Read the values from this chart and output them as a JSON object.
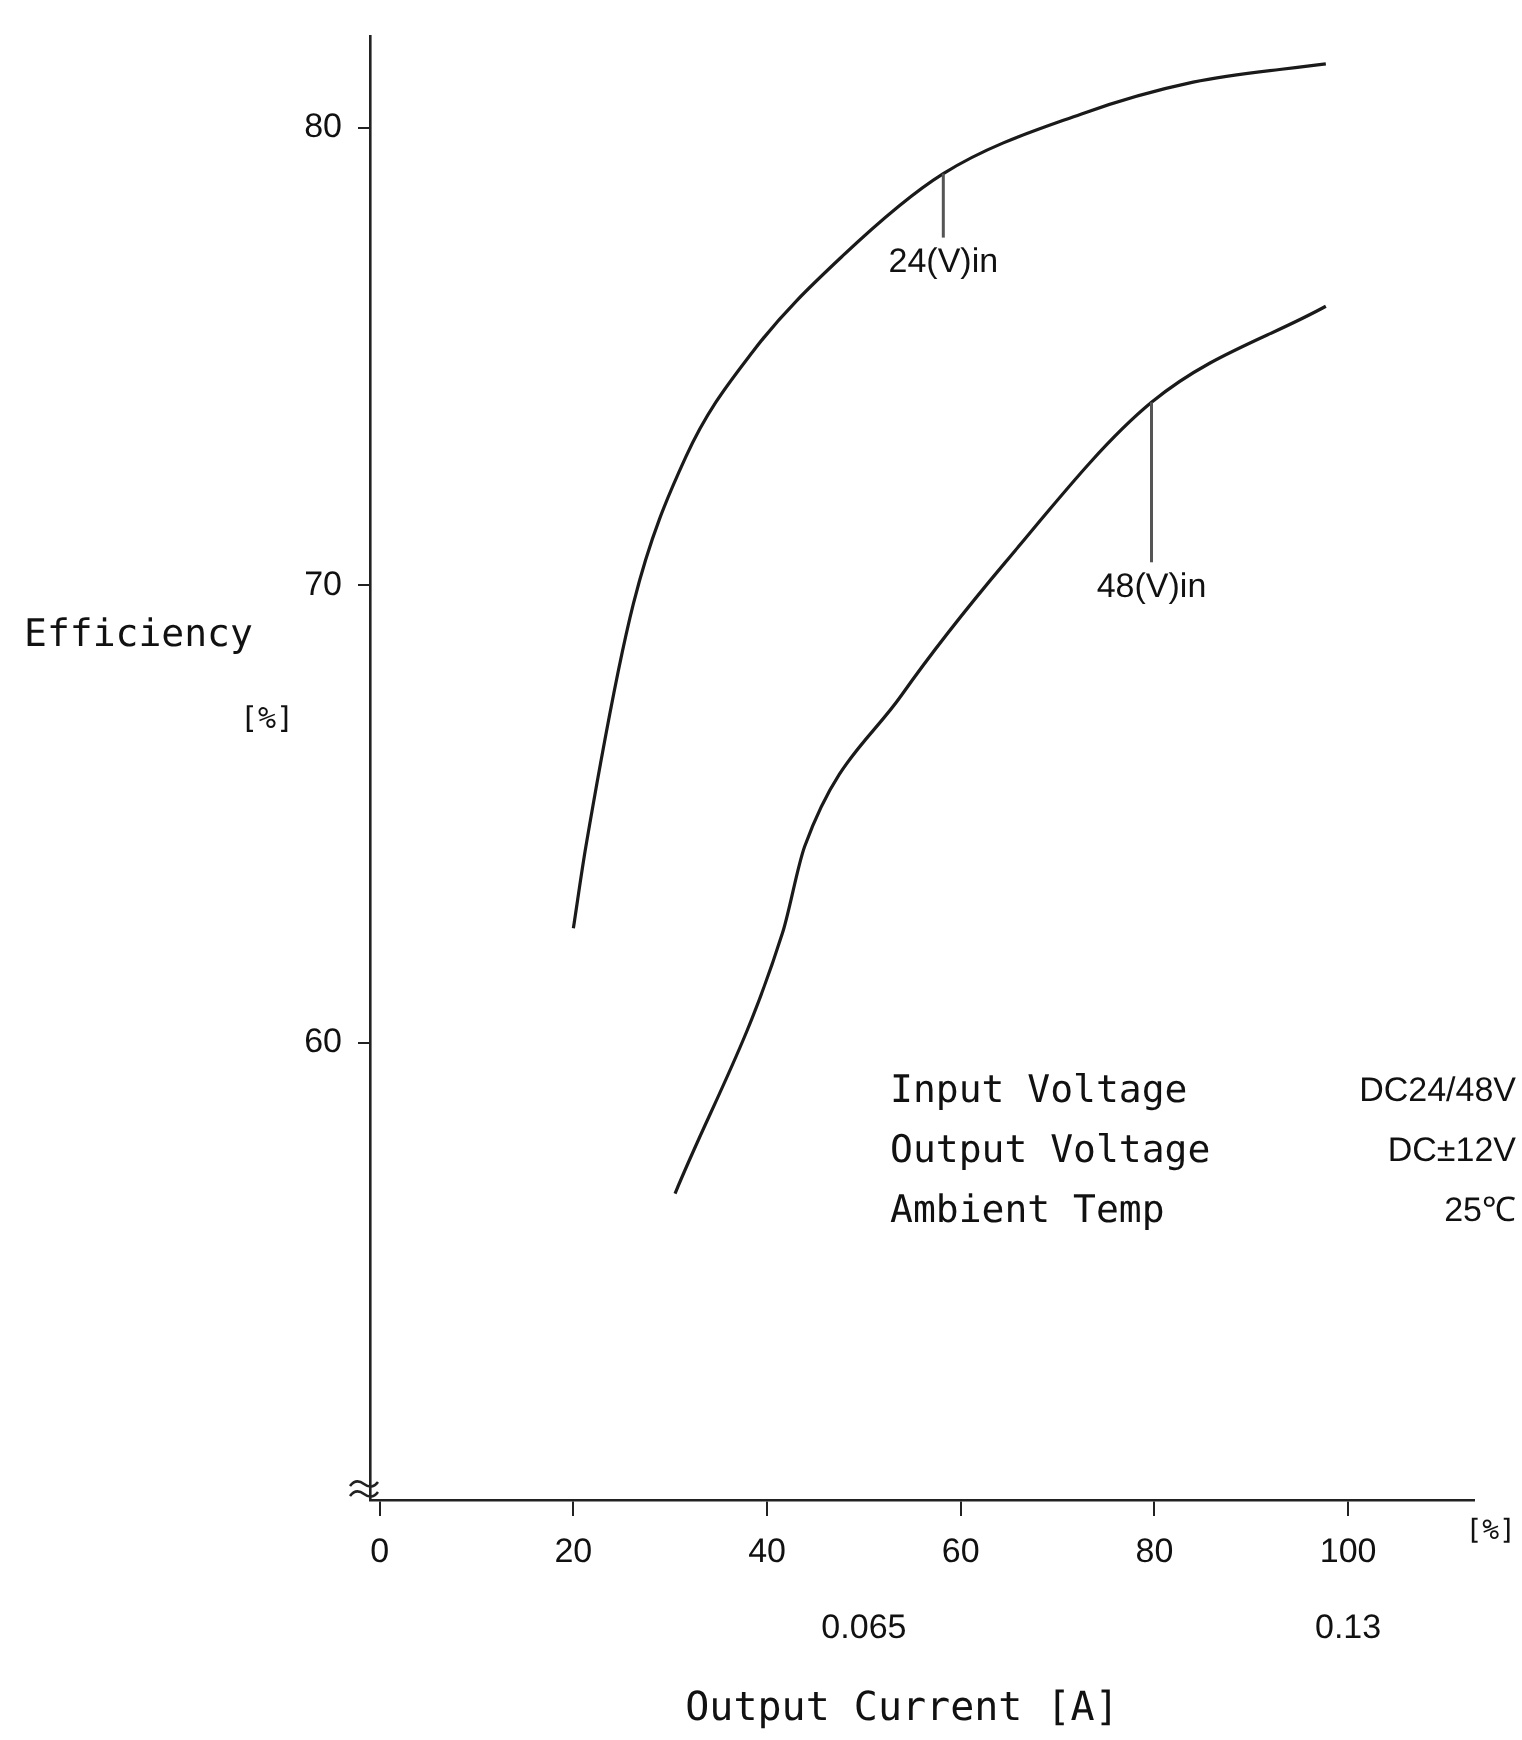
{
  "chart_data": {
    "type": "line",
    "xlabel": "Output Current [A]",
    "ylabel": "Efficiency [%]",
    "xlim": [
      -1,
      113
    ],
    "xticks": [
      0,
      20,
      40,
      60,
      80,
      100
    ],
    "x2lim": [
      -0.0013,
      0.1469
    ],
    "x2ticks": [
      0.065,
      0.13
    ],
    "ylim": [
      50,
      82
    ],
    "yticks": [
      60,
      70,
      80
    ],
    "grid": false,
    "legend": false,
    "marker": "none",
    "line_style": "solid",
    "series": [
      {
        "color": "#1a1a1a",
        "x": [
          20,
          21.3,
          26.2,
          31.6,
          38.5,
          47.8,
          58.2,
          72.4,
          84,
          97.7
        ],
        "values": [
          62.5,
          64.3,
          69.6,
          72.8,
          75.1,
          77.2,
          79.0,
          80.3,
          81.0,
          81.4
        ]
      },
      {
        "color": "#1a1a1a",
        "x": [
          30.5,
          41.6,
          43.9,
          53.9,
          64.6,
          79.7,
          97.7
        ],
        "values": [
          56.7,
          62.4,
          64.3,
          67.6,
          70.5,
          74.0,
          76.1
        ]
      }
    ],
    "annotations": [
      {
        "text": "24(V)in",
        "x": 58.2,
        "y": 79.0
      },
      {
        "text": "48(V)in",
        "x": 79.7,
        "y": 74.0
      },
      "[%]",
      "Input Voltage  DC24/48V",
      "Output Voltage  DC±12V",
      "Ambient Temp  25℃"
    ]
  }
}
